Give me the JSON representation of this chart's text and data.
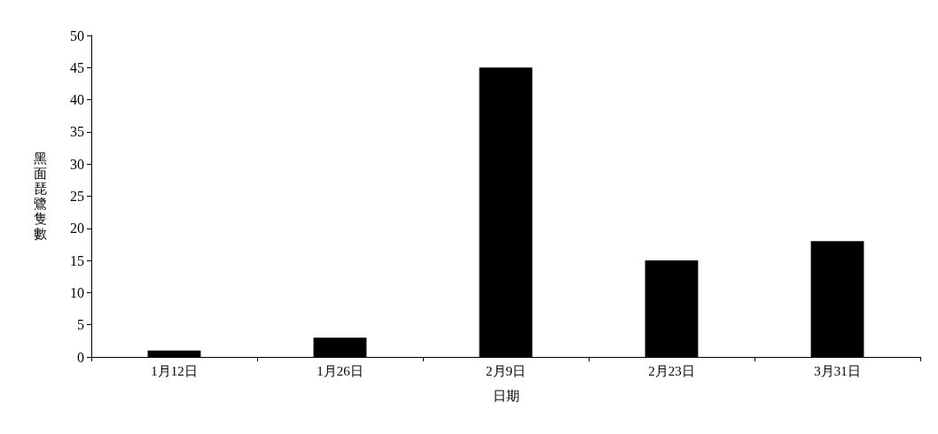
{
  "chart_data": {
    "type": "bar",
    "xlabel": "日期",
    "ylabel": "黑面琵鷺隻數",
    "categories": [
      "1月12日",
      "1月26日",
      "2月9日",
      "2月23日",
      "3月31日"
    ],
    "values": [
      1,
      3,
      45,
      15,
      18
    ],
    "color": "#000000",
    "ylim": [
      0,
      50
    ],
    "yticks": [
      0,
      5,
      10,
      15,
      20,
      25,
      30,
      35,
      40,
      45,
      50
    ]
  }
}
